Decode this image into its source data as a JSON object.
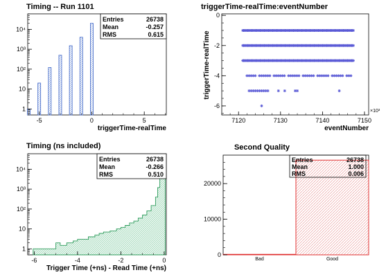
{
  "panels": [
    {
      "id": "p1",
      "title": "Timing -- Run 1101",
      "xlabel": "triggerTime-realTime",
      "ylabel": "",
      "stats": {
        "Entries": "26738",
        "Mean": "-0.257",
        "RMS": "0.615"
      },
      "fill_color": "#9bb8e6",
      "line_color": "#3a63c6",
      "chart_data": {
        "type": "bar",
        "yscale": "log",
        "xlim": [
          -6.1,
          7.1
        ],
        "ylim": [
          0.5,
          60000
        ],
        "xticks": [
          -5,
          0,
          5
        ],
        "yticks": [
          {
            "v": 1,
            "label": "1"
          },
          {
            "v": 10,
            "label": "10"
          },
          {
            "v": 100,
            "label": "10²"
          },
          {
            "v": 1000,
            "label": "10³"
          },
          {
            "v": 10000,
            "label": "10⁴"
          }
        ],
        "bars": [
          {
            "x": -6,
            "value": 1
          },
          {
            "x": -5,
            "value": 20
          },
          {
            "x": -4,
            "value": 120
          },
          {
            "x": -3,
            "value": 500
          },
          {
            "x": -2,
            "value": 1500
          },
          {
            "x": -1,
            "value": 4000
          },
          {
            "x": 0,
            "value": 20000
          }
        ]
      }
    },
    {
      "id": "p2",
      "title": "triggerTime-realTime:eventNumber",
      "xlabel": "eventNumber",
      "ylabel": "triggerTime-realTime",
      "x_exponent": "×10³",
      "marker_color": "#5b5bd6",
      "chart_data": {
        "type": "scatter",
        "xlim": [
          7116,
          7151
        ],
        "ylim": [
          -6.6,
          0.1
        ],
        "xticks": [
          7120,
          7130,
          7140,
          7150
        ],
        "yticks": [
          0,
          -2,
          -4,
          -6
        ],
        "rows": [
          {
            "y": -1,
            "x_start": 7121,
            "x_end": 7147.5,
            "density": "continuous"
          },
          {
            "y": -2,
            "x_start": 7121,
            "x_end": 7147.5,
            "density": "continuous"
          },
          {
            "y": -3,
            "x_start": 7121,
            "x_end": 7147.5,
            "density": "continuous"
          },
          {
            "y": -4,
            "x_start": 7122,
            "x_end": 7147,
            "density": "mostly continuous"
          },
          {
            "y": -5,
            "x_points": [
              7122.5,
              7123,
              7123.5,
              7124,
              7124.5,
              7125,
              7125.5,
              7126,
              7126.5,
              7127,
              7129.5,
              7131,
              7133.5,
              7134,
              7144
            ]
          },
          {
            "y": -6,
            "x_points": [
              7125.5
            ]
          }
        ]
      }
    },
    {
      "id": "p3",
      "title": "Timing (ns included)",
      "xlabel": "Trigger Time (+ns) - Read Time (+ns)",
      "ylabel": "",
      "stats": {
        "Entries": "26738",
        "Mean": "-0.266",
        "RMS": "0.510"
      },
      "fill_color": "#c9ead9",
      "line_color": "#2e9c5c",
      "chart_data": {
        "type": "area",
        "yscale": "log",
        "xlim": [
          -6.3,
          0.1
        ],
        "ylim": [
          0.5,
          60000
        ],
        "xticks": [
          -6,
          -4,
          -2,
          0
        ],
        "yticks": [
          {
            "v": 1,
            "label": "1"
          },
          {
            "v": 10,
            "label": "10"
          },
          {
            "v": 100,
            "label": "10²"
          },
          {
            "v": 1000,
            "label": "10³"
          },
          {
            "v": 10000,
            "label": "10⁴"
          }
        ],
        "points": [
          {
            "x": -6.05,
            "y": 1
          },
          {
            "x": -5.3,
            "y": 1
          },
          {
            "x": -5.0,
            "y": 2
          },
          {
            "x": -4.8,
            "y": 1.5
          },
          {
            "x": -4.5,
            "y": 2
          },
          {
            "x": -4.2,
            "y": 2.5
          },
          {
            "x": -4.0,
            "y": 3
          },
          {
            "x": -3.8,
            "y": 3
          },
          {
            "x": -3.5,
            "y": 4
          },
          {
            "x": -3.2,
            "y": 5
          },
          {
            "x": -3.0,
            "y": 6
          },
          {
            "x": -2.8,
            "y": 7
          },
          {
            "x": -2.5,
            "y": 8
          },
          {
            "x": -2.2,
            "y": 10
          },
          {
            "x": -2.0,
            "y": 12
          },
          {
            "x": -1.8,
            "y": 15
          },
          {
            "x": -1.6,
            "y": 20
          },
          {
            "x": -1.4,
            "y": 25
          },
          {
            "x": -1.2,
            "y": 35
          },
          {
            "x": -1.0,
            "y": 50
          },
          {
            "x": -0.8,
            "y": 80
          },
          {
            "x": -0.6,
            "y": 150
          },
          {
            "x": -0.4,
            "y": 400
          },
          {
            "x": -0.3,
            "y": 1200
          },
          {
            "x": -0.2,
            "y": 4000
          },
          {
            "x": -0.1,
            "y": 20000
          },
          {
            "x": 0.0,
            "y": 5000
          }
        ]
      }
    },
    {
      "id": "p4",
      "title": "Second Quality",
      "xlabel": "",
      "ylabel": "",
      "stats": {
        "Entries": "26738",
        "Mean": "1.000",
        "RMS": "0.006"
      },
      "fill_color": "#f3c9c9",
      "line_color": "#e03131",
      "chart_data": {
        "type": "bar",
        "categories": [
          "Bad",
          "Good"
        ],
        "values": [
          150,
          26588
        ],
        "ylim": [
          0,
          28000
        ],
        "yticks": [
          0,
          10000,
          20000
        ]
      }
    }
  ]
}
